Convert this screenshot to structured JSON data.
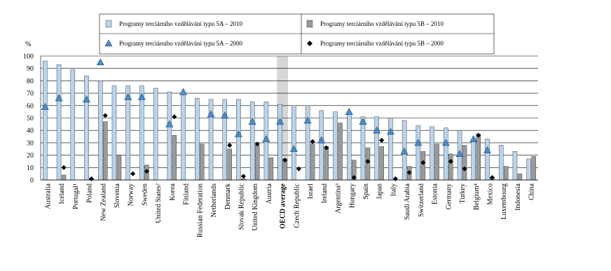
{
  "chart_data": {
    "type": "bar",
    "y_label": "%",
    "categories": [
      "Australia",
      "Iceland",
      "Portugal¹",
      "Poland",
      "New Zealand",
      "Slovenia",
      "Norway",
      "Sweden",
      "United States²",
      "Korea",
      "Finland",
      "Russian Federation",
      "Netherlands",
      "Denmark",
      "Slovak Republic",
      "United Kingdom",
      "Austria",
      "OECD average",
      "Czech Republic",
      "Israel",
      "Ireland",
      "Argentina³",
      "Hungary",
      "Spain",
      "Japan",
      "Italy",
      "Saudi Arabia",
      "Switzerland",
      "Estonia",
      "Germany",
      "Turkey",
      "Belgium⁴",
      "Mexico",
      "Luxembourg",
      "Indonesia",
      "China"
    ],
    "highlight": 17,
    "series": [
      {
        "name": "Programy terciárního vzdělávání typu 5A – 2010",
        "mark": "bar",
        "color": "#b9d4ec",
        "values": [
          96,
          93,
          89,
          84,
          80,
          76,
          76,
          76,
          74,
          71,
          68,
          66,
          65,
          65,
          65,
          63,
          63,
          61,
          60,
          60,
          56,
          55,
          55,
          51,
          51,
          50,
          48,
          44,
          43,
          42,
          40,
          32,
          33,
          28,
          23,
          17
        ]
      },
      {
        "name": "Programy terciárního vzdělávání typu 5B – 2010",
        "mark": "bar",
        "color": "#9a9a9a",
        "values": [
          null,
          4,
          null,
          1,
          47,
          20,
          null,
          12,
          null,
          36,
          null,
          29,
          null,
          25,
          1,
          28,
          18,
          17,
          null,
          29,
          27,
          46,
          16,
          26,
          27,
          null,
          11,
          23,
          29,
          21,
          28,
          37,
          2,
          11,
          5,
          19
        ]
      },
      {
        "name": "Programy terciárního vzdělávání typu 5A – 2000",
        "mark": "triangle",
        "color": "#4a8ccf",
        "values": [
          59,
          66,
          null,
          65,
          95,
          null,
          67,
          67,
          null,
          45,
          71,
          null,
          53,
          52,
          37,
          47,
          33,
          47,
          25,
          48,
          32,
          null,
          55,
          47,
          40,
          39,
          23,
          30,
          null,
          30,
          21,
          33,
          24,
          null,
          null,
          null
        ]
      },
      {
        "name": "Programy terciárního vzdělávání typu 5B – 2000",
        "mark": "diamond",
        "color": "#000000",
        "values": [
          null,
          10,
          null,
          1,
          52,
          null,
          5,
          7,
          null,
          51,
          null,
          null,
          null,
          28,
          3,
          29,
          null,
          16,
          9,
          31,
          26,
          null,
          2,
          15,
          32,
          1,
          6,
          14,
          null,
          15,
          9,
          36,
          2,
          null,
          null,
          null
        ]
      }
    ],
    "ylim": [
      0,
      100
    ],
    "yticks": [
      0,
      10,
      20,
      30,
      40,
      50,
      60,
      70,
      80,
      90,
      100
    ],
    "grid": true
  }
}
